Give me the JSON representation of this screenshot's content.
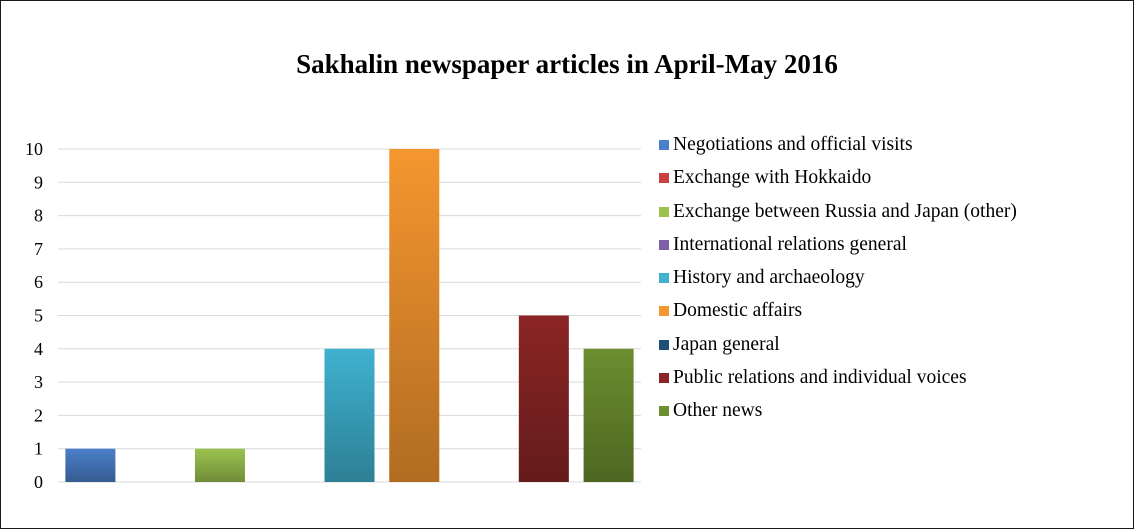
{
  "chart_data": {
    "type": "bar",
    "title": "Sakhalin newspaper articles in April-May 2016",
    "categories": [
      "Negotiations and official visits",
      "Exchange with Hokkaido",
      "Exchange between Russia and Japan (other)",
      "International relations general",
      "History and archaeology",
      "Domestic affairs",
      "Japan general",
      "Public relations and individual voices",
      "Other news"
    ],
    "values": [
      1,
      0,
      1,
      0,
      4,
      10,
      0,
      5,
      4
    ],
    "colors": [
      "#4a7fc9",
      "#c9403d",
      "#9bc24f",
      "#7e5fa5",
      "#3fb1cf",
      "#f5962f",
      "#1f4e79",
      "#8b2525",
      "#6b8e2f"
    ],
    "ylim": [
      0,
      10
    ],
    "yticks": [
      "0",
      "1",
      "2",
      "3",
      "4",
      "5",
      "6",
      "7",
      "8",
      "9",
      "10"
    ],
    "xlabel": "",
    "ylabel": "",
    "grid": true,
    "legend_position": "right"
  }
}
